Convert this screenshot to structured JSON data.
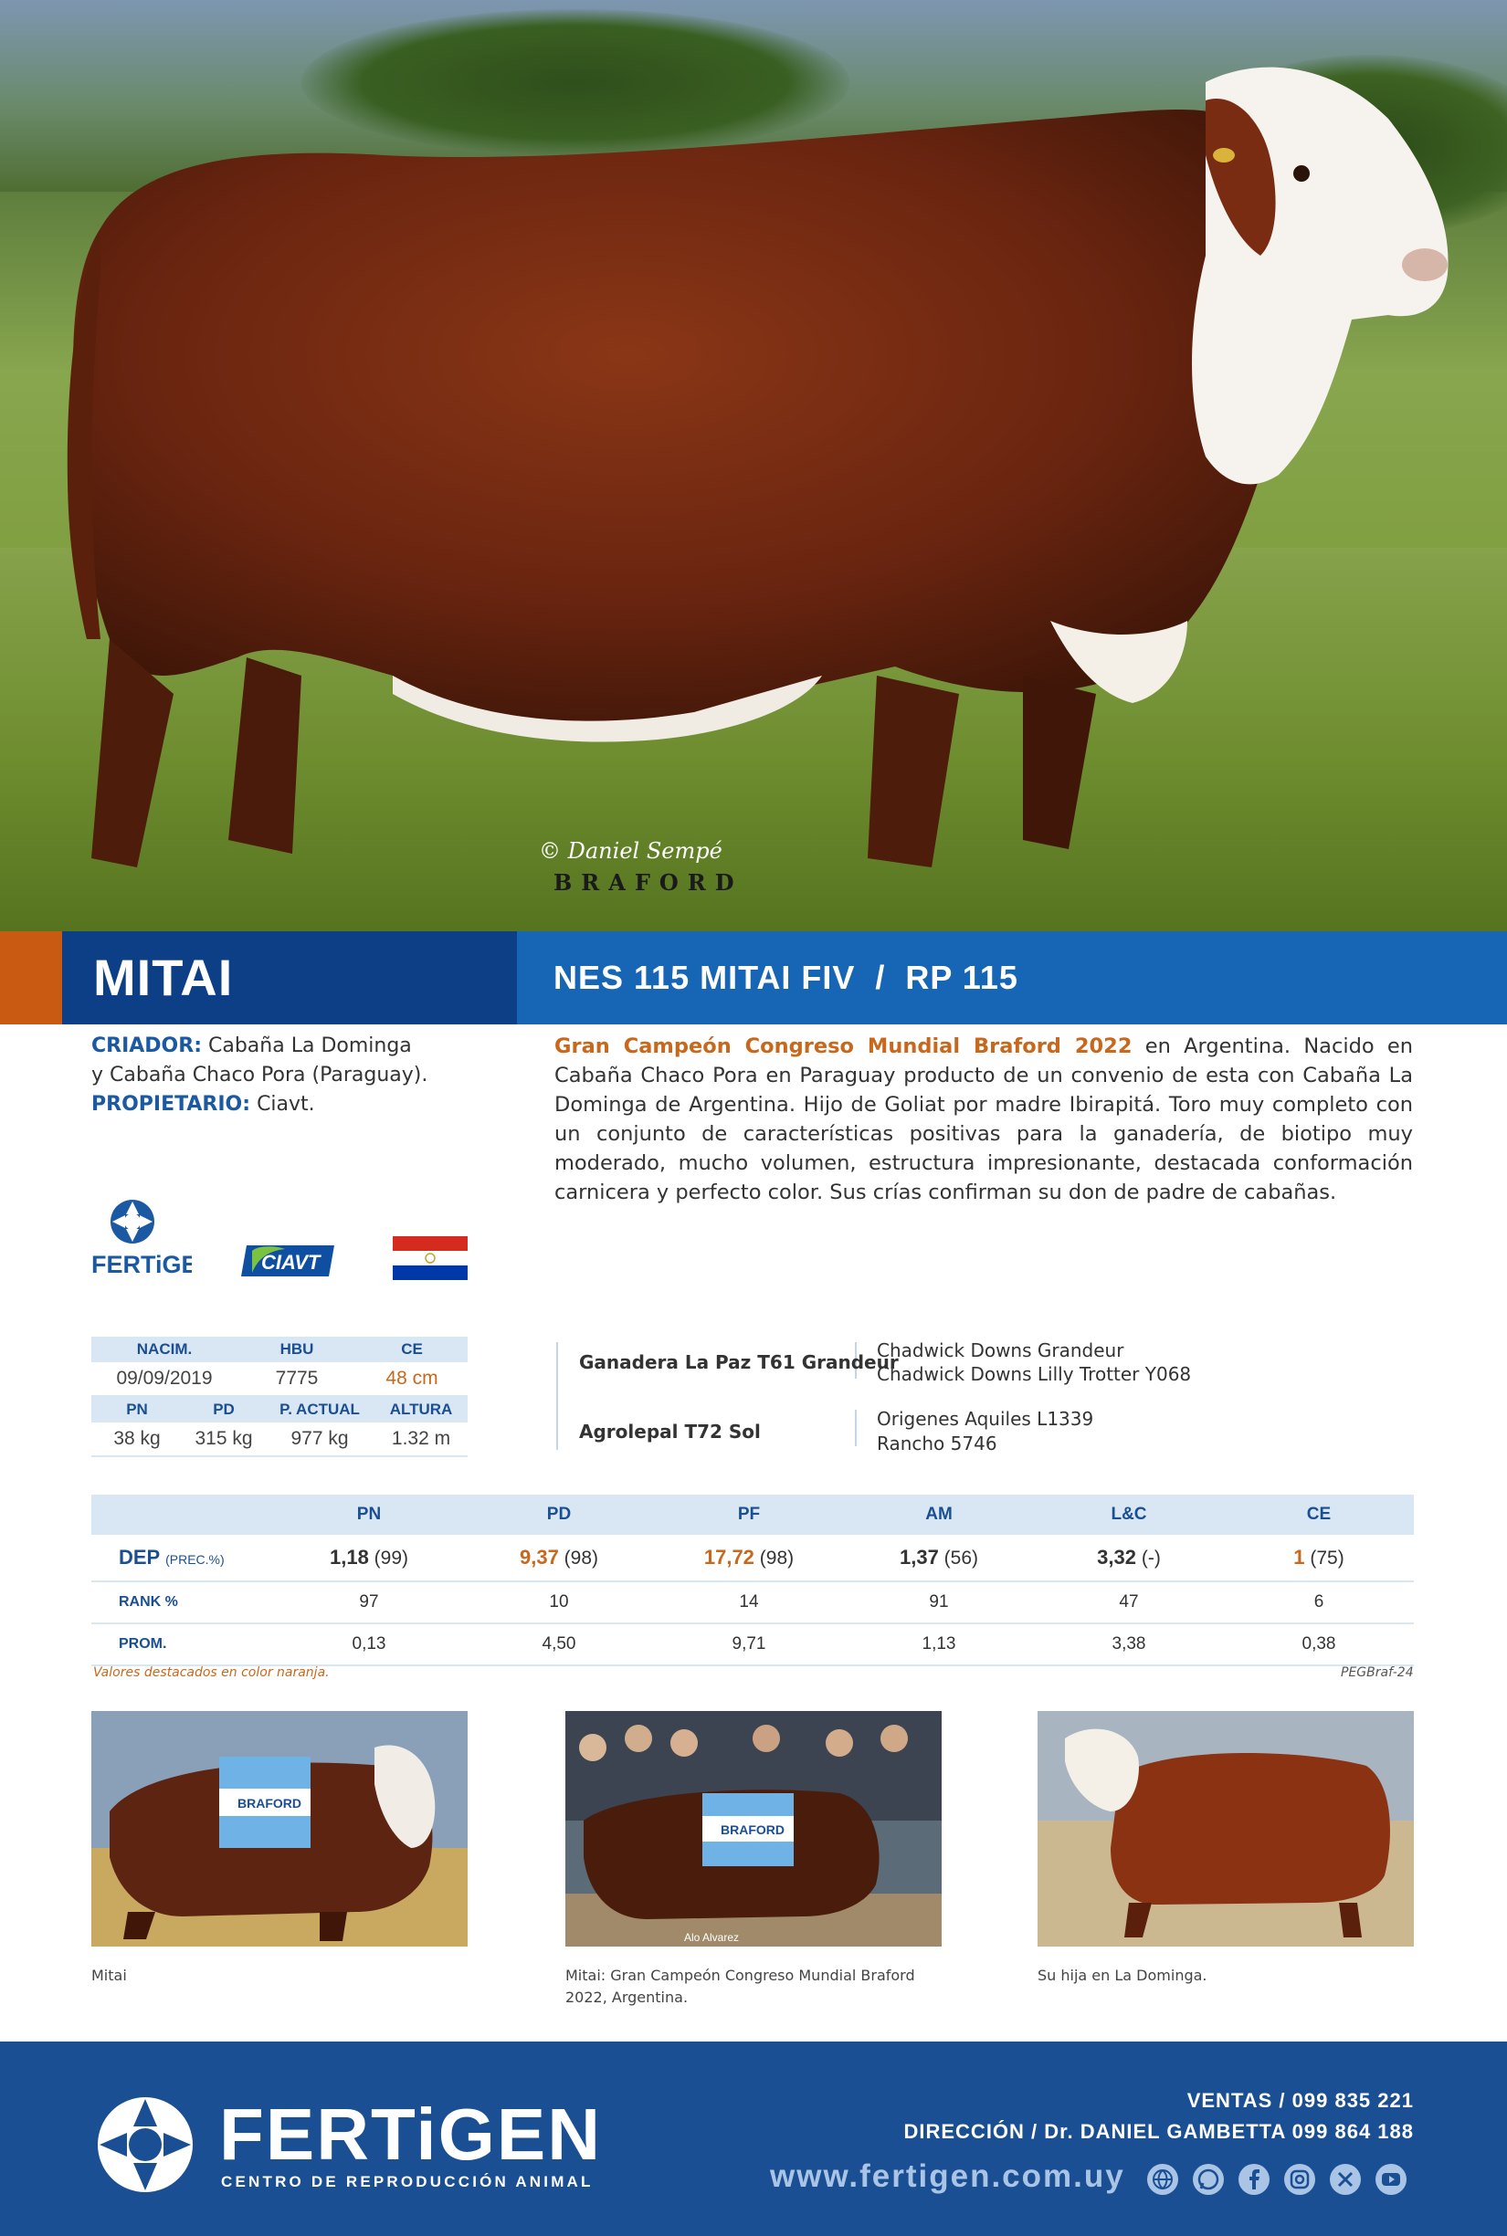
{
  "hero": {
    "photo_credit": "© Daniel Sempé",
    "breed_watermark": "BRAFORD"
  },
  "title": {
    "name": "MITAI",
    "registration": "NES 115 MITAI FIV  /  RP 115"
  },
  "breeder": {
    "criador_label": "CRIADOR:",
    "criador_value_1": "Cabaña La Dominga",
    "criador_value_2": "y Cabaña Chaco Pora (Paraguay).",
    "propietario_label": "PROPIETARIO:",
    "propietario_value": "Ciavt."
  },
  "logos": {
    "fertigen": "FERTiGEN",
    "ciavt": "CIAVT"
  },
  "description": {
    "highlight": "Gran Campeón Congreso Mundial Braford 2022",
    "text": " en Argentina. Nacido en Cabaña Chaco Pora en Paraguay producto de un convenio de esta con Cabaña La Dominga de Argentina. Hijo de Goliat por madre Ibirapitá.  Toro muy completo con un conjunto de características positivas para la ganadería, de biotipo muy moderado, mucho volumen, estructura impresionante, destacada conformación carnicera y perfecto color. Sus crías confirman su don de padre de cabañas."
  },
  "stats": {
    "h1": [
      "NACIM.",
      "HBU",
      "CE"
    ],
    "v1": [
      "09/09/2019",
      "7775",
      "48 cm"
    ],
    "h2": [
      "PN",
      "PD",
      "P. ACTUAL",
      "ALTURA"
    ],
    "v2": [
      "38 kg",
      "315 kg",
      "977 kg",
      "1.32 m"
    ]
  },
  "pedigree": {
    "sire": "Ganadera La Paz T61 Grandeur",
    "sire_sire": "Chadwick Downs Grandeur",
    "sire_dam": "Chadwick Downs Lilly Trotter Y068",
    "dam": "Agrolepal T72 Sol",
    "dam_sire": "Origenes Aquiles L1339",
    "dam_dam": "Rancho 5746"
  },
  "dep_table": {
    "columns": [
      "PN",
      "PD",
      "PF",
      "AM",
      "L&C",
      "CE"
    ],
    "dep_label": "DEP",
    "dep_sub": "(PREC.%)",
    "dep_values": [
      {
        "v": "1,18",
        "p": "(99)"
      },
      {
        "v": "9,37",
        "p": "(98)"
      },
      {
        "v": "17,72",
        "p": "(98)"
      },
      {
        "v": "1,37",
        "p": "(56)"
      },
      {
        "v": "3,32",
        "p": "(-)"
      },
      {
        "v": "1",
        "p": "(75)"
      }
    ],
    "rank_label": "RANK %",
    "rank": [
      "97",
      "10",
      "14",
      "91",
      "47",
      "6"
    ],
    "prom_label": "PROM.",
    "prom": [
      "0,13",
      "4,50",
      "9,71",
      "1,13",
      "3,38",
      "0,38"
    ],
    "note": "Valores destacados en color naranja.",
    "ref": "PEGBraf-24"
  },
  "gallery": [
    {
      "caption": "Mitai"
    },
    {
      "caption": "Mitai: Gran Campeón Congreso Mundial Braford 2022, Argentina."
    },
    {
      "caption": "Su hija en La Dominga."
    }
  ],
  "gallery_overlay": {
    "banner_text": "BRAFORD",
    "photo2_credit": "Alo Alvarez"
  },
  "footer": {
    "brand": "FERTiGEN",
    "sub": "CENTRO DE REPRODUCCIÓN ANIMAL",
    "sales": "VENTAS / 099 835 221",
    "direction": "DIRECCIÓN / Dr. DANIEL GAMBETTA 099 864 188",
    "web": "www.fertigen.com.uy",
    "social_icons": [
      "globe-icon",
      "whatsapp-icon",
      "facebook-icon",
      "instagram-icon",
      "x-icon",
      "youtube-icon"
    ]
  },
  "colors": {
    "orange": "#c85a12",
    "dark_blue": "#0d3f86",
    "mid_blue": "#1766b5",
    "footer_blue": "#1b4f93",
    "highlight_orange": "#c8681c"
  }
}
